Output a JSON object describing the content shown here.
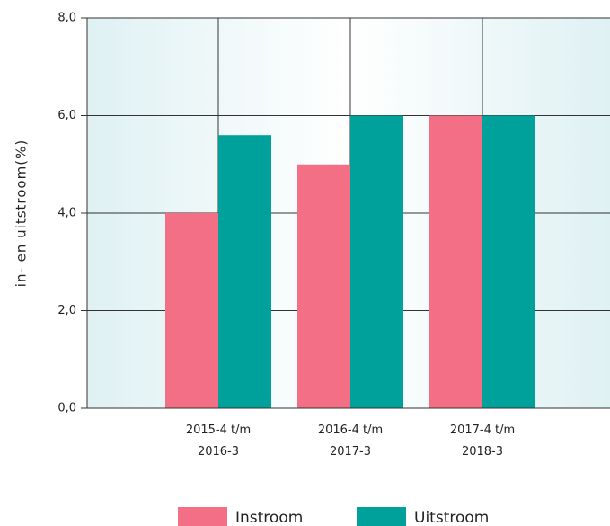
{
  "chart_data": {
    "type": "bar",
    "y_label": "in- en uitstroom(%)",
    "categories": [
      "2015-4 t/m 2016-3",
      "2016-4 t/m 2017-3",
      "2017-4 t/m 2018-3"
    ],
    "series": [
      {
        "name": "Instroom",
        "color": "#f36f85",
        "values": [
          4.0,
          5.0,
          6.0
        ]
      },
      {
        "name": "Uitstroom",
        "color": "#00a19b",
        "values": [
          5.6,
          6.0,
          6.0
        ]
      }
    ],
    "ylim": [
      0,
      8
    ],
    "yticks": [
      {
        "value": 0,
        "label": "0,0"
      },
      {
        "value": 2,
        "label": "2,0"
      },
      {
        "value": 4,
        "label": "4,0"
      },
      {
        "value": 6,
        "label": "6,0"
      },
      {
        "value": 8,
        "label": "8,0"
      }
    ],
    "grid": true
  }
}
